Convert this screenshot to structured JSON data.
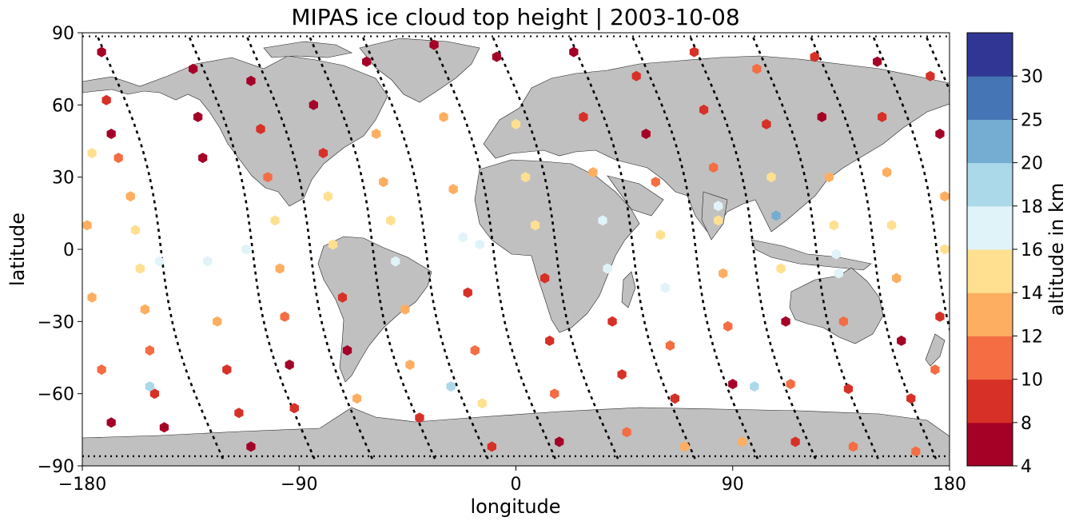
{
  "chart_data": {
    "type": "scatter",
    "title": "MIPAS ice cloud top height | 2003-10-08",
    "xlabel": "longitude",
    "ylabel": "latitude",
    "xlim": [
      -180,
      180
    ],
    "ylim": [
      -90,
      90
    ],
    "xticks": [
      -180,
      -90,
      0,
      90,
      180
    ],
    "xtick_labels": [
      "−180",
      "−90",
      "0",
      "90",
      "180"
    ],
    "yticks": [
      -90,
      -60,
      -30,
      0,
      30,
      60,
      90
    ],
    "ytick_labels": [
      "−90",
      "−60",
      "−30",
      "0",
      "30",
      "60",
      "90"
    ],
    "colorbar": {
      "label": "altitude in km",
      "levels": [
        4,
        8,
        10,
        12,
        14,
        16,
        18,
        20,
        25,
        30
      ],
      "tick_labels": [
        "4",
        "8",
        "10",
        "12",
        "14",
        "16",
        "18",
        "20",
        "25",
        "30"
      ],
      "colors": [
        "#a50026",
        "#d73027",
        "#f46d43",
        "#fdae61",
        "#fee090",
        "#e0f3f8",
        "#abd9e9",
        "#74add1",
        "#4575b4",
        "#313695"
      ]
    },
    "map_colors": {
      "land": "#c0c0c0",
      "coastline": "#000000",
      "track": "#000000"
    },
    "series": [
      {
        "points": [
          {
            "lon": -172,
            "lat": 82,
            "alt": 6
          },
          {
            "lon": -170,
            "lat": 62,
            "alt": 9
          },
          {
            "lon": -168,
            "lat": 48,
            "alt": 7
          },
          {
            "lon": -165,
            "lat": 38,
            "alt": 11
          },
          {
            "lon": -160,
            "lat": 22,
            "alt": 13
          },
          {
            "lon": -158,
            "lat": 8,
            "alt": 15
          },
          {
            "lon": -156,
            "lat": -8,
            "alt": 14
          },
          {
            "lon": -154,
            "lat": -25,
            "alt": 12
          },
          {
            "lon": -152,
            "lat": -42,
            "alt": 11
          },
          {
            "lon": -150,
            "lat": -60,
            "alt": 9
          },
          {
            "lon": -146,
            "lat": -74,
            "alt": 7
          },
          {
            "lon": -134,
            "lat": 75,
            "alt": 7
          },
          {
            "lon": -132,
            "lat": 55,
            "alt": 6
          },
          {
            "lon": -130,
            "lat": 38,
            "alt": 7
          },
          {
            "lon": -128,
            "lat": -5,
            "alt": 17
          },
          {
            "lon": -124,
            "lat": -30,
            "alt": 13
          },
          {
            "lon": -120,
            "lat": -50,
            "alt": 8
          },
          {
            "lon": -115,
            "lat": -68,
            "alt": 9
          },
          {
            "lon": -110,
            "lat": -82,
            "alt": 6
          },
          {
            "lon": -110,
            "lat": 70,
            "alt": 6
          },
          {
            "lon": -106,
            "lat": 50,
            "alt": 8
          },
          {
            "lon": -103,
            "lat": 30,
            "alt": 11
          },
          {
            "lon": -100,
            "lat": 12,
            "alt": 14
          },
          {
            "lon": -98,
            "lat": -8,
            "alt": 13
          },
          {
            "lon": -96,
            "lat": -28,
            "alt": 11
          },
          {
            "lon": -94,
            "lat": -48,
            "alt": 7
          },
          {
            "lon": -92,
            "lat": -66,
            "alt": 8
          },
          {
            "lon": -84,
            "lat": 60,
            "alt": 7
          },
          {
            "lon": -80,
            "lat": 40,
            "alt": 9
          },
          {
            "lon": -78,
            "lat": 22,
            "alt": 14
          },
          {
            "lon": -76,
            "lat": 2,
            "alt": 15
          },
          {
            "lon": -72,
            "lat": -20,
            "alt": 9
          },
          {
            "lon": -70,
            "lat": -42,
            "alt": 7
          },
          {
            "lon": -66,
            "lat": -62,
            "alt": 12
          },
          {
            "lon": -62,
            "lat": 78,
            "alt": 7
          },
          {
            "lon": -58,
            "lat": 48,
            "alt": 12
          },
          {
            "lon": -55,
            "lat": 28,
            "alt": 13
          },
          {
            "lon": -52,
            "lat": 12,
            "alt": 15
          },
          {
            "lon": -50,
            "lat": -5,
            "alt": 17
          },
          {
            "lon": -46,
            "lat": -25,
            "alt": 13
          },
          {
            "lon": -44,
            "lat": -48,
            "alt": 12
          },
          {
            "lon": -40,
            "lat": -70,
            "alt": 8
          },
          {
            "lon": -34,
            "lat": 85,
            "alt": 7
          },
          {
            "lon": -30,
            "lat": 55,
            "alt": 13
          },
          {
            "lon": -26,
            "lat": 25,
            "alt": 13
          },
          {
            "lon": -22,
            "lat": 5,
            "alt": 16
          },
          {
            "lon": -20,
            "lat": -18,
            "alt": 8
          },
          {
            "lon": -17,
            "lat": -42,
            "alt": 10
          },
          {
            "lon": -14,
            "lat": -64,
            "alt": 14
          },
          {
            "lon": -10,
            "lat": -82,
            "alt": 9
          },
          {
            "lon": -8,
            "lat": 80,
            "alt": 6
          },
          {
            "lon": 0,
            "lat": 52,
            "alt": 14
          },
          {
            "lon": 4,
            "lat": 30,
            "alt": 14
          },
          {
            "lon": 8,
            "lat": 10,
            "alt": 15
          },
          {
            "lon": 12,
            "lat": -12,
            "alt": 8
          },
          {
            "lon": 14,
            "lat": -38,
            "alt": 9
          },
          {
            "lon": 16,
            "lat": -60,
            "alt": 11
          },
          {
            "lon": 18,
            "lat": -80,
            "alt": 7
          },
          {
            "lon": 24,
            "lat": 82,
            "alt": 7
          },
          {
            "lon": 28,
            "lat": 55,
            "alt": 9
          },
          {
            "lon": 32,
            "lat": 32,
            "alt": 13
          },
          {
            "lon": 36,
            "lat": 12,
            "alt": 16
          },
          {
            "lon": 38,
            "lat": -8,
            "alt": 17
          },
          {
            "lon": 40,
            "lat": -30,
            "alt": 8
          },
          {
            "lon": 44,
            "lat": -52,
            "alt": 9
          },
          {
            "lon": 46,
            "lat": -76,
            "alt": 10
          },
          {
            "lon": 50,
            "lat": 72,
            "alt": 8
          },
          {
            "lon": 54,
            "lat": 48,
            "alt": 6
          },
          {
            "lon": 58,
            "lat": 28,
            "alt": 11
          },
          {
            "lon": 60,
            "lat": 6,
            "alt": 14
          },
          {
            "lon": 62,
            "lat": -16,
            "alt": 16
          },
          {
            "lon": 64,
            "lat": -40,
            "alt": 11
          },
          {
            "lon": 66,
            "lat": -62,
            "alt": 8
          },
          {
            "lon": 70,
            "lat": -82,
            "alt": 12
          },
          {
            "lon": 74,
            "lat": 82,
            "alt": 9
          },
          {
            "lon": 78,
            "lat": 58,
            "alt": 8
          },
          {
            "lon": 82,
            "lat": 34,
            "alt": 10
          },
          {
            "lon": 84,
            "lat": 12,
            "alt": 14
          },
          {
            "lon": 86,
            "lat": -10,
            "alt": 13
          },
          {
            "lon": 88,
            "lat": -32,
            "alt": 11
          },
          {
            "lon": 90,
            "lat": -56,
            "alt": 7
          },
          {
            "lon": 94,
            "lat": -80,
            "alt": 13
          },
          {
            "lon": 100,
            "lat": 75,
            "alt": 11
          },
          {
            "lon": 104,
            "lat": 52,
            "alt": 9
          },
          {
            "lon": 106,
            "lat": 30,
            "alt": 14
          },
          {
            "lon": 108,
            "lat": 14,
            "alt": 20
          },
          {
            "lon": 110,
            "lat": -8,
            "alt": 15
          },
          {
            "lon": 112,
            "lat": -30,
            "alt": 7
          },
          {
            "lon": 114,
            "lat": -56,
            "alt": 10
          },
          {
            "lon": 116,
            "lat": -80,
            "alt": 8
          },
          {
            "lon": 124,
            "lat": 80,
            "alt": 8
          },
          {
            "lon": 127,
            "lat": 55,
            "alt": 6
          },
          {
            "lon": 130,
            "lat": 30,
            "alt": 13
          },
          {
            "lon": 132,
            "lat": 10,
            "alt": 14
          },
          {
            "lon": 134,
            "lat": -10,
            "alt": 16
          },
          {
            "lon": 136,
            "lat": -30,
            "alt": 11
          },
          {
            "lon": 138,
            "lat": -58,
            "alt": 9
          },
          {
            "lon": 140,
            "lat": -82,
            "alt": 10
          },
          {
            "lon": 150,
            "lat": 78,
            "alt": 7
          },
          {
            "lon": 152,
            "lat": 55,
            "alt": 9
          },
          {
            "lon": 154,
            "lat": 32,
            "alt": 13
          },
          {
            "lon": 156,
            "lat": 10,
            "alt": 14
          },
          {
            "lon": 158,
            "lat": -12,
            "alt": 12
          },
          {
            "lon": 160,
            "lat": -38,
            "alt": 7
          },
          {
            "lon": 164,
            "lat": -62,
            "alt": 8
          },
          {
            "lon": 166,
            "lat": -84,
            "alt": 11
          },
          {
            "lon": 172,
            "lat": 72,
            "alt": 8
          },
          {
            "lon": 176,
            "lat": 48,
            "alt": 7
          },
          {
            "lon": 178,
            "lat": 22,
            "alt": 12
          },
          {
            "lon": 178,
            "lat": 0,
            "alt": 14
          },
          {
            "lon": 176,
            "lat": -28,
            "alt": 8
          },
          {
            "lon": 174,
            "lat": -50,
            "alt": 11
          },
          {
            "lon": -176,
            "lat": 40,
            "alt": 14
          },
          {
            "lon": -178,
            "lat": 10,
            "alt": 12
          },
          {
            "lon": -176,
            "lat": -20,
            "alt": 13
          },
          {
            "lon": -172,
            "lat": -50,
            "alt": 10
          },
          {
            "lon": -168,
            "lat": -72,
            "alt": 7
          },
          {
            "lon": -152,
            "lat": -57,
            "alt": 19
          },
          {
            "lon": -27,
            "lat": -57,
            "alt": 19
          },
          {
            "lon": 99,
            "lat": -57,
            "alt": 19
          },
          {
            "lon": -148,
            "lat": -5,
            "alt": 17
          },
          {
            "lon": -112,
            "lat": 0,
            "alt": 17
          },
          {
            "lon": -15,
            "lat": 2,
            "alt": 17
          },
          {
            "lon": 84,
            "lat": 18,
            "alt": 17
          },
          {
            "lon": 133,
            "lat": -2,
            "alt": 17
          }
        ]
      }
    ]
  }
}
